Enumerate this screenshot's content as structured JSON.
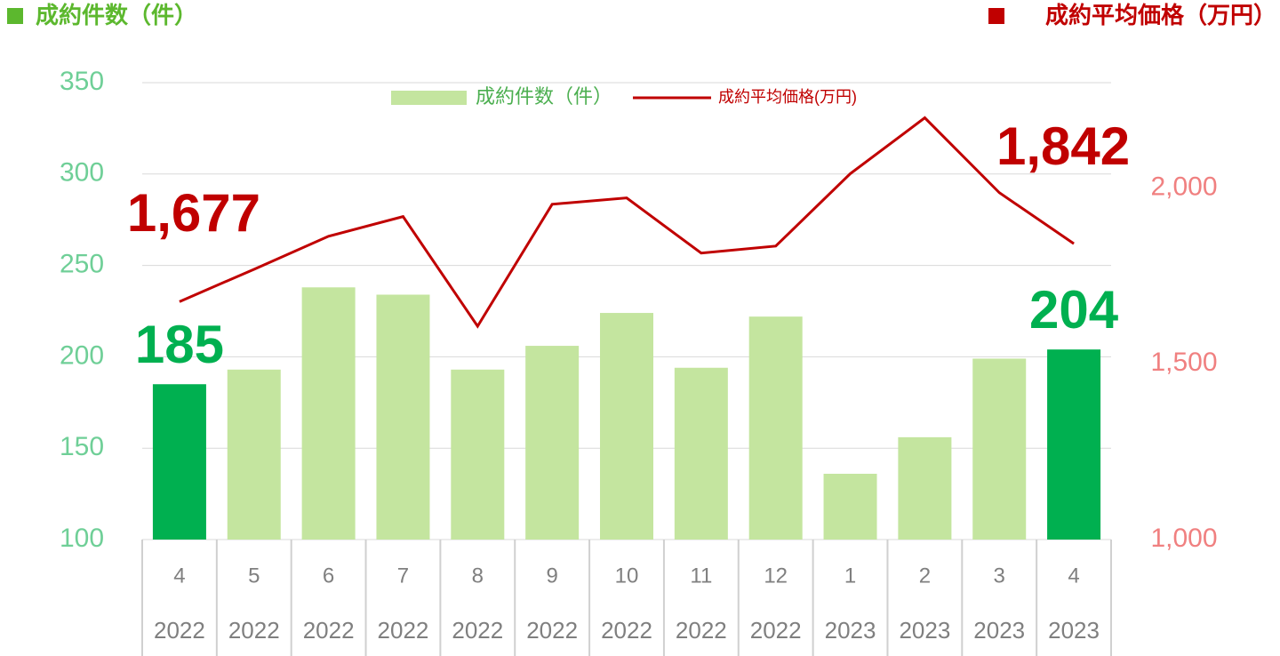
{
  "chart_data": {
    "type": "bar",
    "y_label": "成約件数（件）",
    "y2_label": "成約平均価格（万円）",
    "categories": [
      "4",
      "5",
      "6",
      "7",
      "8",
      "9",
      "10",
      "11",
      "12",
      "1",
      "2",
      "3",
      "4"
    ],
    "category_years": [
      "2022",
      "2022",
      "2022",
      "2022",
      "2022",
      "2022",
      "2022",
      "2022",
      "2022",
      "2023",
      "2023",
      "2023",
      "2023"
    ],
    "series": [
      {
        "name": "成約件数（件）",
        "type": "bar",
        "color": "#c4e59f",
        "colors": [
          "#00b050",
          "#c4e59f",
          "#c4e59f",
          "#c4e59f",
          "#c4e59f",
          "#c4e59f",
          "#c4e59f",
          "#c4e59f",
          "#c4e59f",
          "#c4e59f",
          "#c4e59f",
          "#c4e59f",
          "#00b050"
        ],
        "values": [
          185,
          193,
          238,
          234,
          193,
          206,
          224,
          194,
          222,
          136,
          156,
          199,
          204
        ],
        "value_labels": [
          "185",
          null,
          null,
          null,
          null,
          null,
          null,
          null,
          null,
          null,
          null,
          null,
          "204"
        ]
      },
      {
        "name": "成約平均価格(万円)",
        "type": "line",
        "axis": "y2",
        "color": "#c00000",
        "values": [
          1677,
          1769,
          1863,
          1919,
          1607,
          1954,
          1972,
          1815,
          1835,
          2041,
          2200,
          1987,
          1842
        ],
        "value_labels": [
          "1,677",
          null,
          null,
          null,
          null,
          null,
          null,
          null,
          null,
          null,
          null,
          null,
          "1,842"
        ]
      }
    ],
    "ylim": [
      100,
      350
    ],
    "yticks": [
      100,
      150,
      200,
      250,
      300,
      350
    ],
    "y2lim": [
      1000,
      2300
    ],
    "y2ticks": [
      {
        "value": 1000,
        "label": "1,000"
      },
      {
        "value": 1500,
        "label": "1,500"
      },
      {
        "value": 2000,
        "label": "2,000"
      }
    ],
    "grid": true
  }
}
